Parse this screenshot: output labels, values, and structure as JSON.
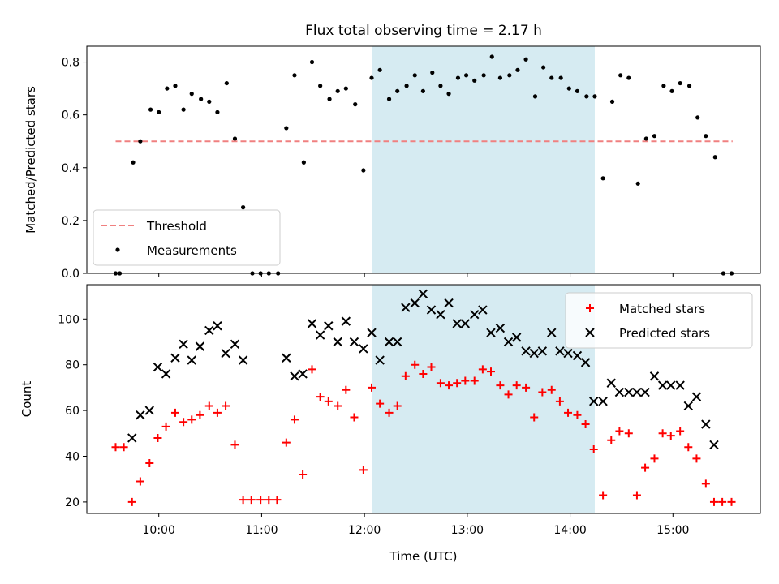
{
  "figure": {
    "title": "Flux total observing time = 2.17 h",
    "xlabel": "Time (UTC)",
    "observing_window": {
      "start_hour": 12.07,
      "end_hour": 14.24,
      "color": "#add8e6"
    },
    "xlim": [
      9.3,
      15.85
    ],
    "x_ticks": [
      {
        "value": 10,
        "label": "10:00"
      },
      {
        "value": 11,
        "label": "11:00"
      },
      {
        "value": 12,
        "label": "12:00"
      },
      {
        "value": 13,
        "label": "13:00"
      },
      {
        "value": 14,
        "label": "14:00"
      },
      {
        "value": 15,
        "label": "15:00"
      }
    ]
  },
  "chart_data": [
    {
      "type": "scatter",
      "ylabel": "Matched/Predicted stars",
      "ylim": [
        0,
        0.86
      ],
      "y_ticks": [
        {
          "value": 0.0,
          "label": "0.0"
        },
        {
          "value": 0.2,
          "label": "0.2"
        },
        {
          "value": 0.4,
          "label": "0.4"
        },
        {
          "value": 0.6,
          "label": "0.6"
        },
        {
          "value": 0.8,
          "label": "0.8"
        }
      ],
      "legend_position": "lower-left",
      "threshold": {
        "label": "Threshold",
        "value": 0.5,
        "x_start": 9.58,
        "x_end": 15.58,
        "color": "#f08080"
      },
      "series": [
        {
          "name": "Measurements",
          "color": "#000000",
          "marker": "dot",
          "x": [
            9.58,
            9.62,
            9.75,
            9.82,
            9.92,
            10.0,
            10.08,
            10.16,
            10.24,
            10.32,
            10.41,
            10.49,
            10.57,
            10.66,
            10.74,
            10.82,
            10.91,
            10.99,
            11.07,
            11.16,
            11.24,
            11.32,
            11.41,
            11.49,
            11.57,
            11.66,
            11.74,
            11.82,
            11.91,
            11.99,
            12.07,
            12.15,
            12.24,
            12.32,
            12.41,
            12.49,
            12.57,
            12.66,
            12.74,
            12.82,
            12.91,
            12.99,
            13.07,
            13.16,
            13.24,
            13.32,
            13.41,
            13.49,
            13.57,
            13.66,
            13.74,
            13.82,
            13.91,
            13.99,
            14.07,
            14.16,
            14.24,
            14.32,
            14.41,
            14.49,
            14.57,
            14.66,
            14.74,
            14.82,
            14.91,
            14.99,
            15.07,
            15.16,
            15.24,
            15.32,
            15.41,
            15.49,
            15.57
          ],
          "y": [
            0.0,
            0.0,
            0.42,
            0.5,
            0.62,
            0.61,
            0.7,
            0.71,
            0.62,
            0.68,
            0.66,
            0.65,
            0.61,
            0.72,
            0.51,
            0.25,
            0.0,
            0.0,
            0.0,
            0.0,
            0.55,
            0.75,
            0.42,
            0.8,
            0.71,
            0.66,
            0.69,
            0.7,
            0.64,
            0.39,
            0.74,
            0.77,
            0.66,
            0.69,
            0.71,
            0.75,
            0.69,
            0.76,
            0.71,
            0.68,
            0.74,
            0.75,
            0.73,
            0.75,
            0.82,
            0.74,
            0.75,
            0.77,
            0.81,
            0.67,
            0.78,
            0.74,
            0.74,
            0.7,
            0.69,
            0.67,
            0.67,
            0.36,
            0.65,
            0.75,
            0.74,
            0.34,
            0.51,
            0.52,
            0.71,
            0.69,
            0.72,
            0.71,
            0.59,
            0.52,
            0.44,
            0.0,
            0.0
          ]
        }
      ]
    },
    {
      "type": "scatter",
      "ylabel": "Count",
      "ylim": [
        15,
        115
      ],
      "y_ticks": [
        {
          "value": 20,
          "label": "20"
        },
        {
          "value": 40,
          "label": "40"
        },
        {
          "value": 60,
          "label": "60"
        },
        {
          "value": 80,
          "label": "80"
        },
        {
          "value": 100,
          "label": "100"
        }
      ],
      "legend_position": "upper-right",
      "series": [
        {
          "name": "Matched stars",
          "color": "#ff0000",
          "marker": "plus",
          "x": [
            9.58,
            9.66,
            9.74,
            9.82,
            9.91,
            9.99,
            10.07,
            10.16,
            10.24,
            10.32,
            10.4,
            10.49,
            10.57,
            10.65,
            10.74,
            10.82,
            10.9,
            10.99,
            11.07,
            11.15,
            11.24,
            11.32,
            11.4,
            11.49,
            11.57,
            11.65,
            11.74,
            11.82,
            11.9,
            11.99,
            12.07,
            12.15,
            12.24,
            12.32,
            12.4,
            12.49,
            12.57,
            12.65,
            12.74,
            12.82,
            12.9,
            12.98,
            13.07,
            13.15,
            13.23,
            13.32,
            13.4,
            13.48,
            13.57,
            13.65,
            13.73,
            13.82,
            13.9,
            13.98,
            14.07,
            14.15,
            14.23,
            14.32,
            14.4,
            14.48,
            14.57,
            14.65,
            14.73,
            14.82,
            14.9,
            14.98,
            15.07,
            15.15,
            15.23,
            15.32,
            15.4,
            15.48,
            15.57
          ],
          "y": [
            44,
            44,
            20,
            29,
            37,
            48,
            53,
            59,
            55,
            56,
            58,
            62,
            59,
            62,
            45,
            21,
            21,
            21,
            21,
            21,
            46,
            56,
            32,
            78,
            66,
            64,
            62,
            69,
            57,
            34,
            70,
            63,
            59,
            62,
            75,
            80,
            76,
            79,
            72,
            71,
            72,
            73,
            73,
            78,
            77,
            71,
            67,
            71,
            70,
            57,
            68,
            69,
            64,
            59,
            58,
            54,
            43,
            23,
            47,
            51,
            50,
            23,
            35,
            39,
            50,
            49,
            51,
            44,
            39,
            28,
            20,
            20,
            20
          ]
        },
        {
          "name": "Predicted stars",
          "color": "#000000",
          "marker": "x",
          "x": [
            9.74,
            9.82,
            9.91,
            9.99,
            10.07,
            10.16,
            10.24,
            10.32,
            10.4,
            10.49,
            10.57,
            10.65,
            10.74,
            10.82,
            11.24,
            11.32,
            11.4,
            11.49,
            11.57,
            11.65,
            11.74,
            11.82,
            11.9,
            11.99,
            12.07,
            12.15,
            12.24,
            12.32,
            12.4,
            12.49,
            12.57,
            12.65,
            12.74,
            12.82,
            12.9,
            12.98,
            13.07,
            13.15,
            13.23,
            13.32,
            13.4,
            13.48,
            13.57,
            13.65,
            13.73,
            13.82,
            13.9,
            13.98,
            14.07,
            14.15,
            14.23,
            14.32,
            14.4,
            14.48,
            14.57,
            14.65,
            14.73,
            14.82,
            14.9,
            14.98,
            15.07,
            15.15,
            15.23,
            15.32,
            15.4
          ],
          "y": [
            48,
            58,
            60,
            79,
            76,
            83,
            89,
            82,
            88,
            95,
            97,
            85,
            89,
            82,
            83,
            75,
            76,
            98,
            93,
            97,
            90,
            99,
            90,
            87,
            94,
            82,
            90,
            90,
            105,
            107,
            111,
            104,
            102,
            107,
            98,
            98,
            102,
            104,
            94,
            96,
            90,
            92,
            86,
            85,
            86,
            94,
            86,
            85,
            84,
            81,
            64,
            64,
            72,
            68,
            68,
            68,
            68,
            75,
            71,
            71,
            71,
            62,
            66,
            54,
            45
          ]
        }
      ]
    }
  ]
}
